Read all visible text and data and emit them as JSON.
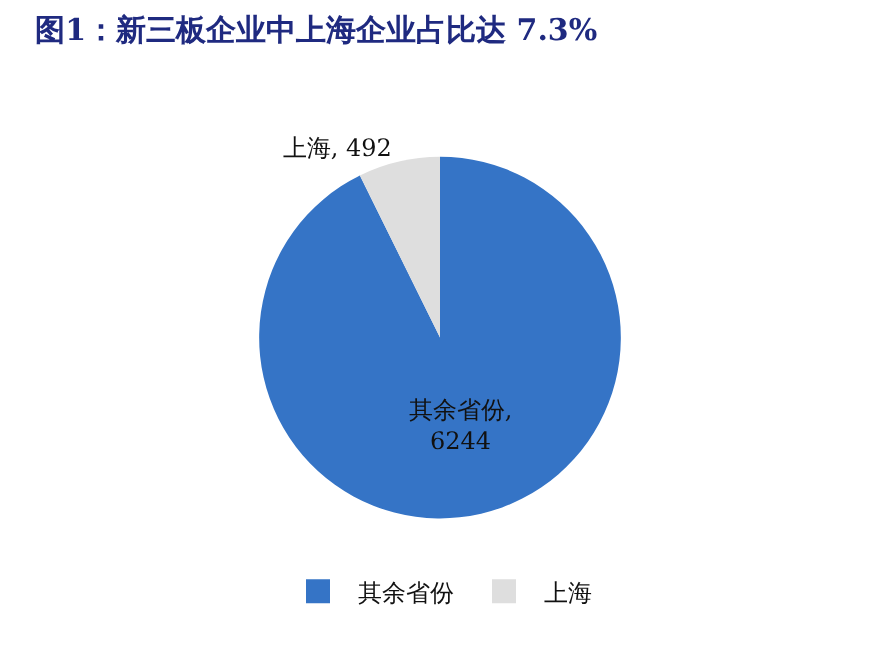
{
  "chart_data": {
    "type": "pie",
    "title": "图1：新三板企业中上海企业占比达 7.3%",
    "categories": [
      "其余省份",
      "上海"
    ],
    "values": [
      6244,
      492
    ],
    "colors": [
      "#3574c6",
      "#dedede"
    ],
    "value_labels": [
      "其余省份, 6244",
      "上海, 492"
    ],
    "legend": "bottom"
  }
}
